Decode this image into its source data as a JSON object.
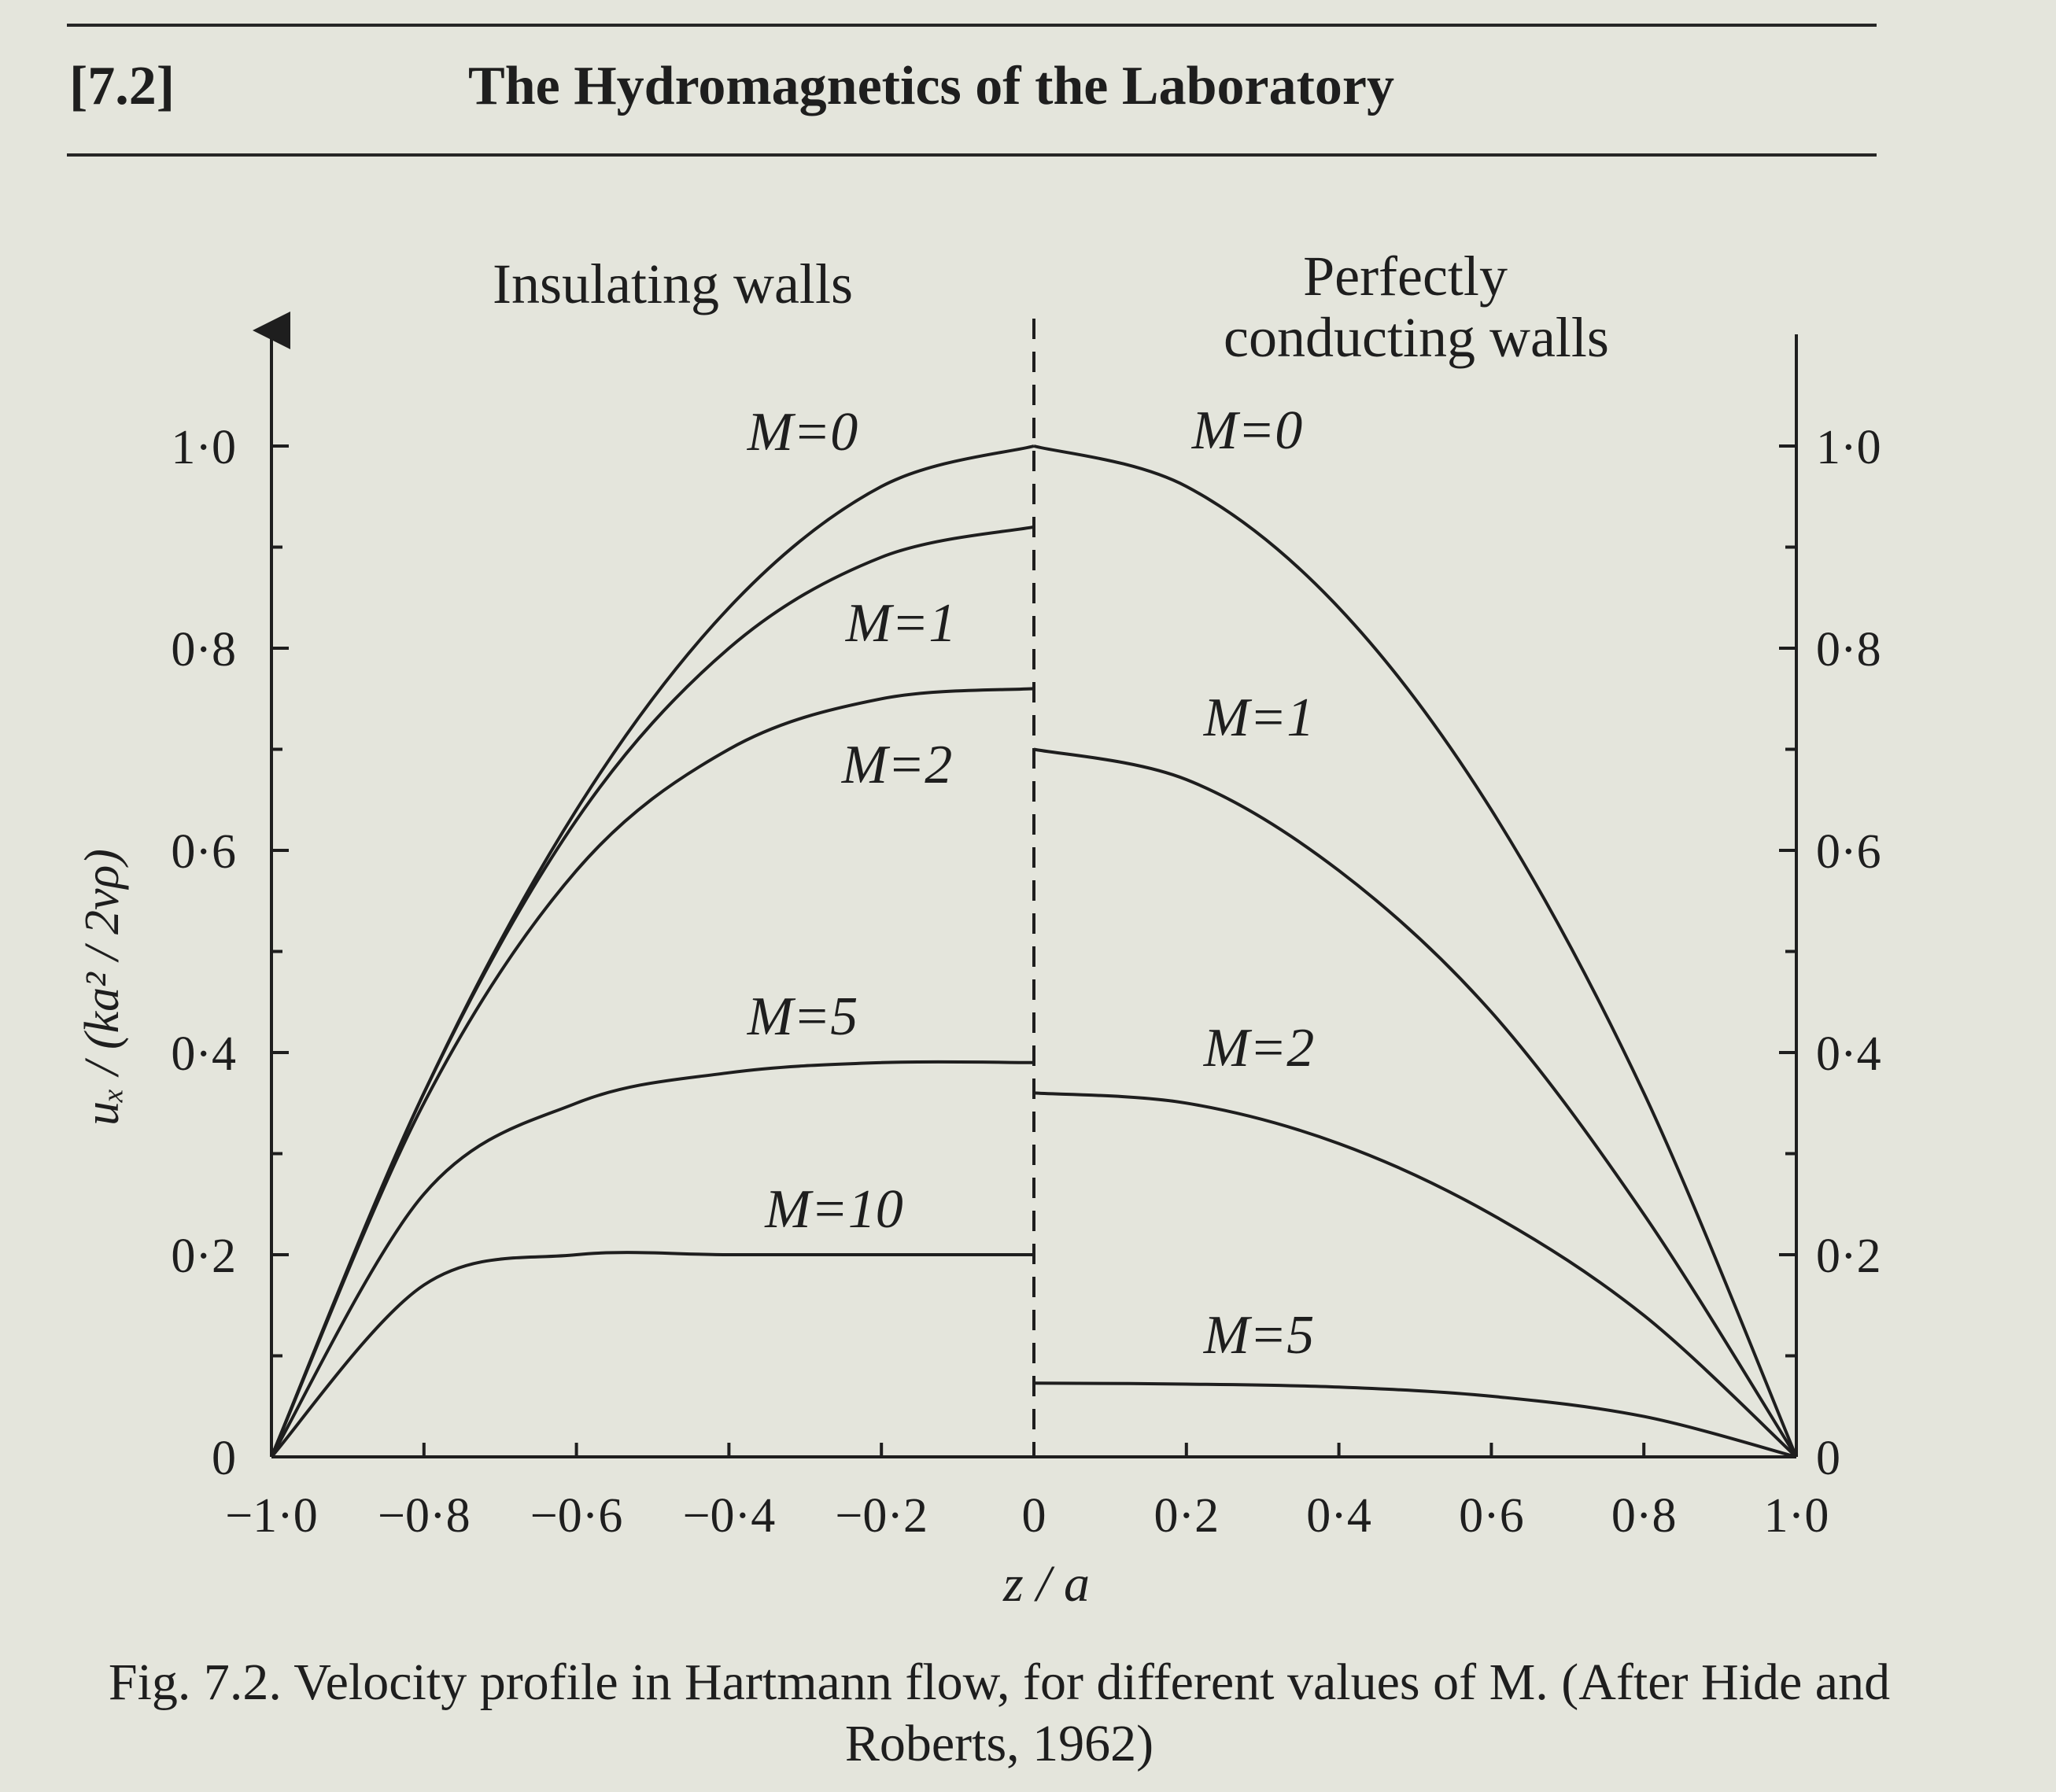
{
  "header": {
    "section": "[7.2]",
    "title": "The Hydromagnetics of the Laboratory"
  },
  "caption": "Fig. 7.2. Velocity profile in Hartmann flow, for different values of M. (After Hide and Roberts, 1962)",
  "chart_data": {
    "type": "line",
    "xlabel": "z / a",
    "ylabel": "uₓ / (ka² / 2νρ)",
    "xlim": [
      -1.0,
      1.0
    ],
    "ylim": [
      0,
      1.0
    ],
    "x_tick_labels": [
      "−1·0",
      "−0·8",
      "−0·6",
      "−0·4",
      "−0·2",
      "0",
      "0·2",
      "0·4",
      "0·6",
      "0·8",
      "1·0"
    ],
    "y_tick_labels": [
      "0",
      "0·2",
      "0·4",
      "0·6",
      "0·8",
      "1·0"
    ],
    "divider_x": 0,
    "panels": [
      {
        "title": "Insulating walls",
        "x_range": [
          -1.0,
          0
        ],
        "series": [
          {
            "name": "M=0",
            "x": [
              -1.0,
              -0.8,
              -0.6,
              -0.4,
              -0.2,
              0
            ],
            "y": [
              0,
              0.36,
              0.64,
              0.84,
              0.96,
              1.0
            ]
          },
          {
            "name": "M=1",
            "x": [
              -1.0,
              -0.8,
              -0.6,
              -0.4,
              -0.2,
              0
            ],
            "y": [
              0,
              0.36,
              0.63,
              0.8,
              0.89,
              0.92
            ]
          },
          {
            "name": "M=2",
            "x": [
              -1.0,
              -0.8,
              -0.6,
              -0.4,
              -0.2,
              0
            ],
            "y": [
              0,
              0.35,
              0.58,
              0.7,
              0.75,
              0.76
            ]
          },
          {
            "name": "M=5",
            "x": [
              -1.0,
              -0.8,
              -0.6,
              -0.4,
              -0.2,
              0
            ],
            "y": [
              0,
              0.26,
              0.35,
              0.38,
              0.39,
              0.39
            ]
          },
          {
            "name": "M=10",
            "x": [
              -1.0,
              -0.8,
              -0.6,
              -0.4,
              -0.2,
              0
            ],
            "y": [
              0,
              0.17,
              0.2,
              0.2,
              0.2,
              0.2
            ]
          }
        ]
      },
      {
        "title": "Perfectly conducting walls",
        "x_range": [
          0,
          1.0
        ],
        "series": [
          {
            "name": "M=0",
            "x": [
              0,
              0.2,
              0.4,
              0.6,
              0.8,
              1.0
            ],
            "y": [
              1.0,
              0.96,
              0.84,
              0.64,
              0.36,
              0
            ]
          },
          {
            "name": "M=1",
            "x": [
              0,
              0.2,
              0.4,
              0.6,
              0.8,
              1.0
            ],
            "y": [
              0.7,
              0.67,
              0.58,
              0.44,
              0.24,
              0
            ]
          },
          {
            "name": "M=2",
            "x": [
              0,
              0.2,
              0.4,
              0.6,
              0.8,
              1.0
            ],
            "y": [
              0.36,
              0.35,
              0.31,
              0.24,
              0.14,
              0
            ]
          },
          {
            "name": "M=5",
            "x": [
              0,
              0.2,
              0.4,
              0.6,
              0.8,
              1.0
            ],
            "y": [
              0.073,
              0.072,
              0.069,
              0.06,
              0.04,
              0
            ]
          }
        ]
      }
    ]
  }
}
